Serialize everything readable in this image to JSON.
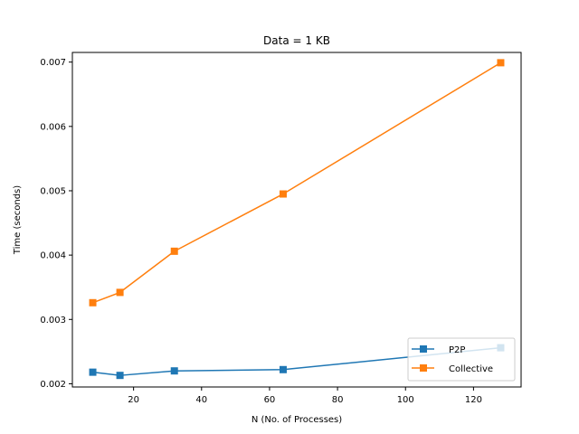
{
  "chart_data": {
    "type": "line",
    "title": "Data = 1 KB",
    "xlabel": "N (No. of Processes)",
    "ylabel": "Time (seconds)",
    "xlim": [
      2,
      134
    ],
    "ylim": [
      0.00195,
      0.00715
    ],
    "xticks": [
      20,
      40,
      60,
      80,
      100,
      120
    ],
    "xtick_labels": [
      "20",
      "40",
      "60",
      "80",
      "100",
      "120"
    ],
    "yticks": [
      0.002,
      0.003,
      0.004,
      0.005,
      0.006,
      0.007
    ],
    "ytick_labels": [
      "0.002",
      "0.003",
      "0.004",
      "0.005",
      "0.006",
      "0.007"
    ],
    "x": [
      8,
      16,
      32,
      64,
      128
    ],
    "series": [
      {
        "name": "P2P",
        "color": "#1f77b4",
        "marker": "square",
        "values": [
          0.00218,
          0.00213,
          0.0022,
          0.00222,
          0.00256
        ]
      },
      {
        "name": "Collective",
        "color": "#ff7f0e",
        "marker": "square",
        "values": [
          0.00326,
          0.00342,
          0.00406,
          0.00495,
          0.00699
        ]
      }
    ],
    "grid": false,
    "legend_position": "lower-right"
  }
}
